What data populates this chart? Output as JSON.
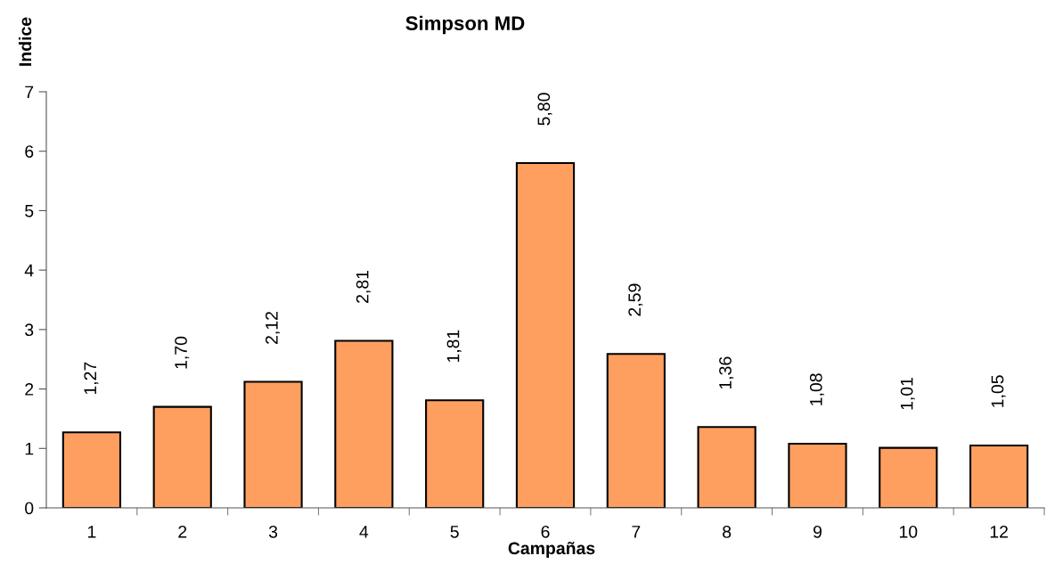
{
  "chart_data": {
    "type": "bar",
    "title": "Simpson MD",
    "xlabel": "Campañas",
    "ylabel": "Indice",
    "categories": [
      "1",
      "2",
      "3",
      "4",
      "5",
      "6",
      "7",
      "8",
      "9",
      "10",
      "12"
    ],
    "values": [
      1.27,
      1.7,
      2.12,
      2.81,
      1.81,
      5.8,
      2.59,
      1.36,
      1.08,
      1.01,
      1.05
    ],
    "value_labels": [
      "1,27",
      "1,70",
      "2,12",
      "2,81",
      "1,81",
      "5,80",
      "2,59",
      "1,36",
      "1,08",
      "1,01",
      "1,05"
    ],
    "color": "#fe9f60",
    "ylim": [
      0,
      7
    ],
    "yticks": [
      0,
      1,
      2,
      3,
      4,
      5,
      6,
      7
    ],
    "grid": false,
    "legend": false
  }
}
